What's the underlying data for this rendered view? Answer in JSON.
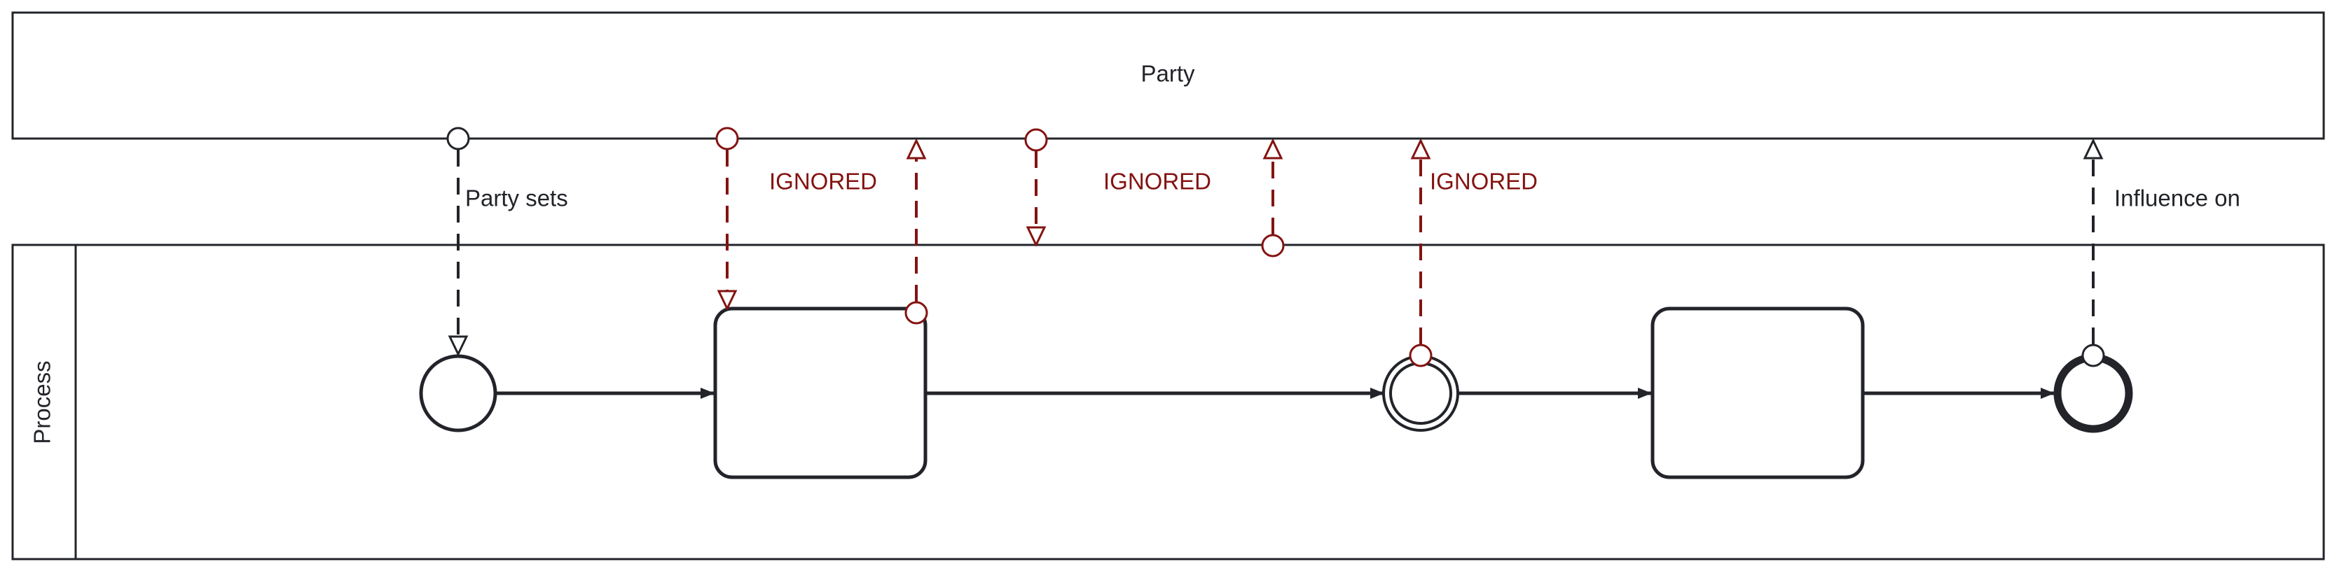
{
  "pools": {
    "party": {
      "label": "Party"
    },
    "process": {
      "label": "Process"
    }
  },
  "message_flows": {
    "party_sets": {
      "label": "Party sets"
    },
    "ignored_1": {
      "label": "IGNORED"
    },
    "ignored_2": {
      "label": "IGNORED"
    },
    "ignored_3": {
      "label": "IGNORED"
    },
    "influence_on": {
      "label": "Influence on"
    }
  },
  "colors": {
    "stroke": "#22242a",
    "ignored": "#831311",
    "background": "#ffffff"
  }
}
